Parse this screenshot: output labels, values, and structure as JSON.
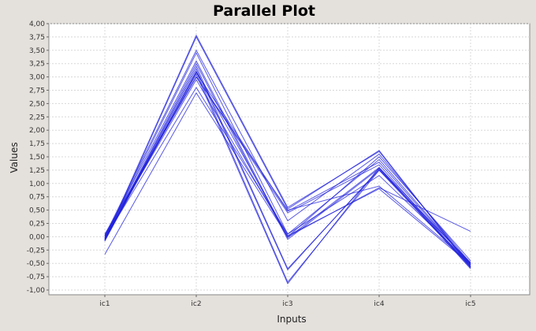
{
  "chart_data": {
    "type": "line",
    "title": "Parallel Plot",
    "xlabel": "Inputs",
    "ylabel": "Values",
    "categories": [
      "ic1",
      "ic2",
      "ic3",
      "ic4",
      "ic5"
    ],
    "y_ticks": [
      "4,00",
      "3,75",
      "3,50",
      "3,25",
      "3,00",
      "2,75",
      "2,50",
      "2,25",
      "2,00",
      "1,75",
      "1,50",
      "1,25",
      "1,00",
      "0,75",
      "0,50",
      "0,25",
      "0,00",
      "-0,25",
      "-0,50",
      "-0,75",
      "-1,00"
    ],
    "ylim": [
      -1.0,
      4.0
    ],
    "grid": true,
    "colors": {
      "line": "#2222dd",
      "background": "#ffffff",
      "grid": "#d8d8d8",
      "frame": "#888888"
    },
    "series": [
      {
        "values": [
          -0.05,
          3.78,
          0.55,
          1.6,
          -0.55
        ]
      },
      {
        "values": [
          -0.08,
          3.75,
          0.52,
          1.62,
          -0.58
        ]
      },
      {
        "values": [
          0.02,
          3.5,
          0.3,
          1.55,
          -0.5
        ]
      },
      {
        "values": [
          -0.02,
          3.45,
          0.05,
          1.45,
          -0.52
        ]
      },
      {
        "values": [
          0.0,
          3.3,
          -0.02,
          1.3,
          -0.5
        ]
      },
      {
        "values": [
          -0.05,
          3.25,
          -0.05,
          1.28,
          -0.55
        ]
      },
      {
        "values": [
          -0.06,
          3.2,
          -0.6,
          1.25,
          -0.48
        ]
      },
      {
        "values": [
          -0.04,
          3.15,
          -0.62,
          1.27,
          -0.56
        ]
      },
      {
        "values": [
          -0.08,
          3.1,
          -0.85,
          1.25,
          -0.58
        ]
      },
      {
        "values": [
          -0.06,
          3.05,
          -0.88,
          1.3,
          -0.6
        ]
      },
      {
        "values": [
          0.03,
          3.0,
          0.5,
          0.95,
          -0.5
        ]
      },
      {
        "values": [
          -0.02,
          3.08,
          0.48,
          1.4,
          -0.53
        ]
      },
      {
        "values": [
          0.0,
          2.95,
          0.0,
          1.5,
          -0.45
        ]
      },
      {
        "values": [
          -0.03,
          2.8,
          0.05,
          1.15,
          -0.5
        ]
      },
      {
        "values": [
          0.05,
          3.0,
          0.45,
          1.35,
          -0.57
        ]
      },
      {
        "values": [
          -0.33,
          2.7,
          0.0,
          0.92,
          0.1
        ]
      },
      {
        "values": [
          -0.07,
          3.1,
          0.02,
          0.9,
          -0.52
        ]
      }
    ]
  }
}
